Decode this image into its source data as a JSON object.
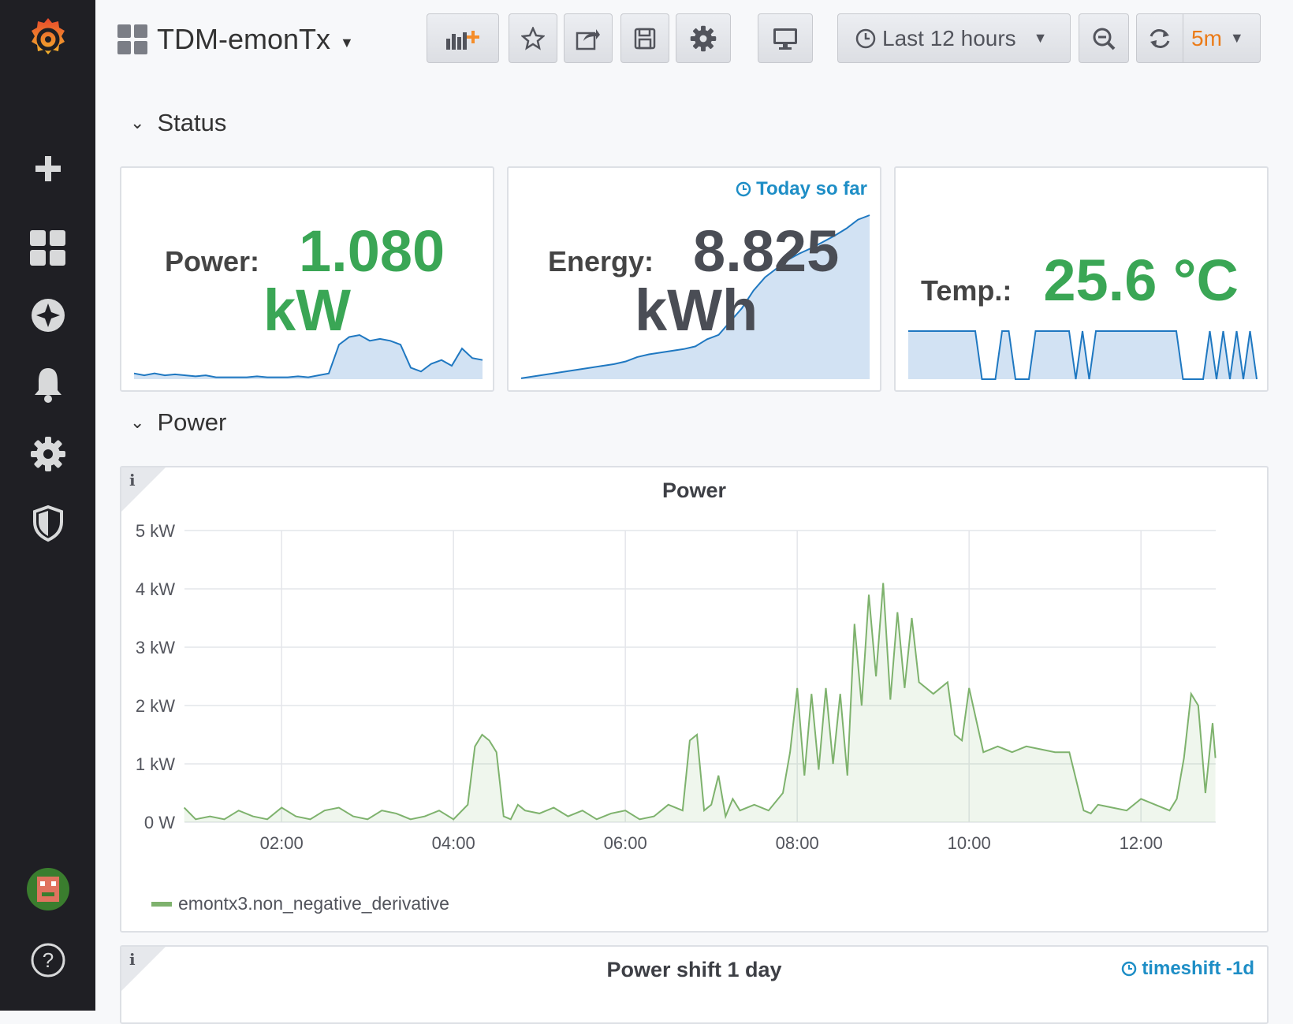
{
  "header": {
    "dashboard_title": "TDM-emonTx",
    "time_range_label": "Last 12 hours",
    "refresh_interval": "5m"
  },
  "sections": {
    "status_label": "Status",
    "power_label": "Power"
  },
  "stats": {
    "power": {
      "label": "Power:",
      "value": "1.080",
      "unit": "kW"
    },
    "energy": {
      "label": "Energy:",
      "value": "8.825",
      "unit": "kWh",
      "badge": "Today so far"
    },
    "temp": {
      "label": "Temp.:",
      "value": "25.6 °C"
    }
  },
  "chart_data": {
    "type": "area",
    "title": "Power",
    "x_ticks": [
      "02:00",
      "04:00",
      "06:00",
      "08:00",
      "10:00",
      "12:00"
    ],
    "y_ticks": [
      "0 W",
      "1 kW",
      "2 kW",
      "3 kW",
      "4 kW",
      "5 kW"
    ],
    "ylim": [
      0,
      5
    ],
    "xlim_hours": [
      0.87,
      12.87
    ],
    "grid": true,
    "legend_placement": "bottom-left",
    "series": [
      {
        "name": "emontx3.non_negative_derivative",
        "color": "#7eb26d",
        "x": [
          "00:52",
          "01:00",
          "01:10",
          "01:20",
          "01:30",
          "01:40",
          "01:50",
          "02:00",
          "02:10",
          "02:20",
          "02:30",
          "02:40",
          "02:50",
          "03:00",
          "03:10",
          "03:20",
          "03:30",
          "03:40",
          "03:50",
          "04:00",
          "04:10",
          "04:15",
          "04:20",
          "04:25",
          "04:30",
          "04:35",
          "04:40",
          "04:45",
          "04:50",
          "05:00",
          "05:10",
          "05:20",
          "05:30",
          "05:40",
          "05:50",
          "06:00",
          "06:10",
          "06:20",
          "06:30",
          "06:40",
          "06:45",
          "06:50",
          "06:55",
          "07:00",
          "07:05",
          "07:10",
          "07:15",
          "07:20",
          "07:30",
          "07:40",
          "07:50",
          "07:55",
          "08:00",
          "08:05",
          "08:10",
          "08:15",
          "08:20",
          "08:25",
          "08:30",
          "08:35",
          "08:40",
          "08:45",
          "08:50",
          "08:55",
          "09:00",
          "09:05",
          "09:10",
          "09:15",
          "09:20",
          "09:25",
          "09:30",
          "09:35",
          "09:40",
          "09:45",
          "09:50",
          "09:55",
          "10:00",
          "10:10",
          "10:20",
          "10:30",
          "10:40",
          "10:50",
          "11:00",
          "11:10",
          "11:20",
          "11:25",
          "11:30",
          "11:40",
          "11:50",
          "12:00",
          "12:10",
          "12:20",
          "12:25",
          "12:30",
          "12:35",
          "12:40",
          "12:45",
          "12:50",
          "12:52"
        ],
        "values": [
          0.25,
          0.05,
          0.1,
          0.05,
          0.2,
          0.1,
          0.05,
          0.25,
          0.1,
          0.05,
          0.2,
          0.25,
          0.1,
          0.05,
          0.2,
          0.15,
          0.05,
          0.1,
          0.2,
          0.05,
          0.3,
          1.3,
          1.5,
          1.4,
          1.2,
          0.1,
          0.05,
          0.3,
          0.2,
          0.15,
          0.25,
          0.1,
          0.2,
          0.05,
          0.15,
          0.2,
          0.05,
          0.1,
          0.3,
          0.2,
          1.4,
          1.5,
          0.2,
          0.3,
          0.8,
          0.1,
          0.4,
          0.2,
          0.3,
          0.2,
          0.5,
          1.2,
          2.3,
          0.8,
          2.2,
          0.9,
          2.3,
          1.0,
          2.2,
          0.8,
          3.4,
          2.0,
          3.9,
          2.5,
          4.1,
          2.1,
          3.6,
          2.3,
          3.5,
          2.4,
          2.3,
          2.2,
          2.3,
          2.4,
          1.5,
          1.4,
          2.3,
          1.2,
          1.3,
          1.2,
          1.3,
          1.25,
          1.2,
          1.2,
          0.2,
          0.15,
          0.3,
          0.25,
          0.2,
          0.4,
          0.3,
          0.2,
          0.4,
          1.1,
          2.2,
          2.0,
          0.5,
          1.7,
          1.1
        ]
      }
    ]
  },
  "panel2": {
    "title": "Power shift 1 day",
    "badge": "timeshift -1d"
  }
}
